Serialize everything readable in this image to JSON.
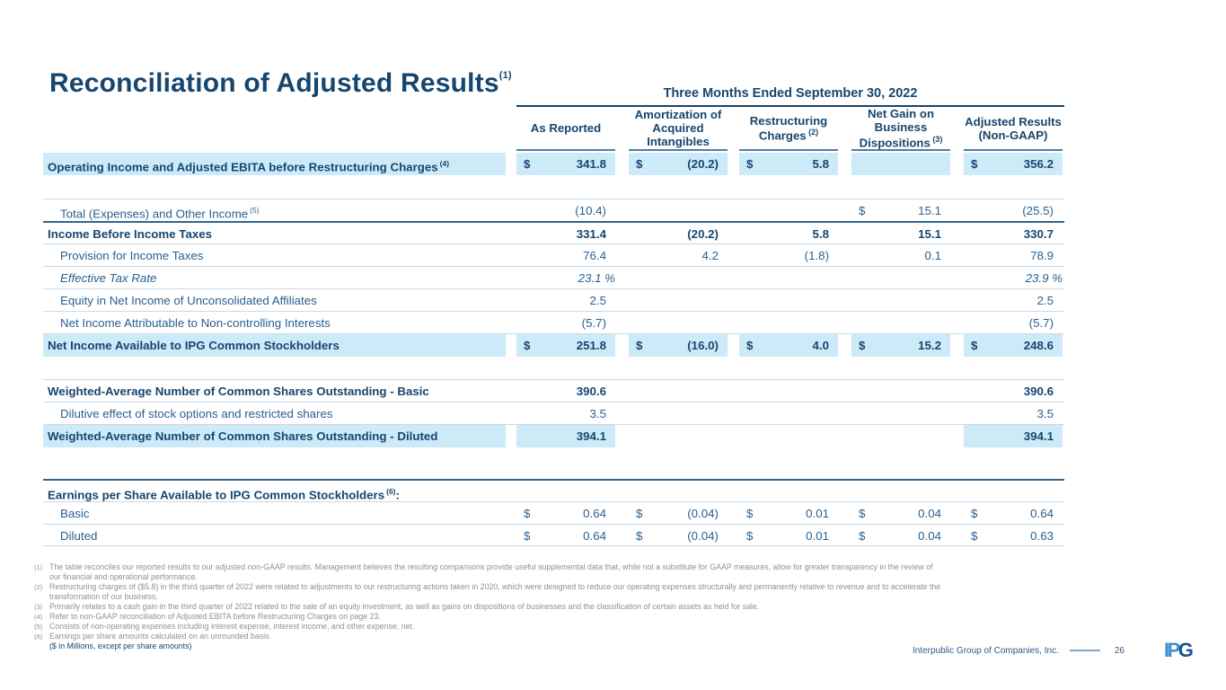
{
  "title": {
    "text": "Reconciliation of Adjusted Results",
    "superscript": "(1)"
  },
  "table": {
    "period_header": "Three Months Ended September 30, 2022",
    "column_headers": [
      {
        "name": "as-reported",
        "text": "As Reported",
        "sup": ""
      },
      {
        "name": "amortization-acquired-intangibles",
        "text": "Amortization of Acquired Intangibles",
        "sup": ""
      },
      {
        "name": "restructuring-charges",
        "text": "Restructuring Charges",
        "sup": "(2)"
      },
      {
        "name": "net-gain-business-dispositions",
        "text": "Net Gain on Business Dispositions",
        "sup": "(3)"
      },
      {
        "name": "adjusted-results-non-gaap",
        "text": "Adjusted Results (Non-GAAP)",
        "sup": ""
      }
    ],
    "rows": [
      {
        "name": "operating-income-adjusted-ebita",
        "label": "Operating Income and Adjusted EBITA before Restructuring Charges",
        "sup": "(4)",
        "bold": true,
        "highlight": true,
        "cells": [
          {
            "d": "$",
            "v": "341.8",
            "hl": true
          },
          {
            "d": "$",
            "v": "(20.2)",
            "hl": true
          },
          {
            "d": "$",
            "v": "5.8",
            "hl": true
          },
          {
            "d": "",
            "v": "",
            "hl": true
          },
          {
            "d": "$",
            "v": "356.2",
            "hl": true
          }
        ]
      },
      {
        "name": "total-expenses-other-income",
        "label": "Total (Expenses) and Other Income",
        "sup": "(5)",
        "indent": true,
        "gap_before": 26,
        "border_top": "light",
        "cells": [
          {
            "v": "(10.4)"
          },
          null,
          null,
          {
            "d": "$",
            "v": "15.1"
          },
          {
            "v": "(25.5)"
          }
        ]
      },
      {
        "name": "income-before-income-taxes",
        "label": "Income Before Income Taxes",
        "bold": true,
        "border_top": "dark",
        "cells": [
          {
            "v": "331.4"
          },
          {
            "v": "(20.2)"
          },
          {
            "v": "5.8"
          },
          {
            "v": "15.1"
          },
          {
            "v": "330.7"
          }
        ]
      },
      {
        "name": "provision-for-income-taxes",
        "label": "Provision for Income Taxes",
        "indent": true,
        "border_top": "light",
        "cells": [
          {
            "v": "76.4"
          },
          {
            "v": "4.2"
          },
          {
            "v": "(1.8)"
          },
          {
            "v": "0.1"
          },
          {
            "v": "78.9"
          }
        ]
      },
      {
        "name": "effective-tax-rate",
        "label": "Effective Tax Rate",
        "indent": true,
        "italic": true,
        "border_top": "light",
        "cells": [
          {
            "v": "23.1 %",
            "pct": true
          },
          null,
          null,
          null,
          {
            "v": "23.9 %",
            "pct": true
          }
        ]
      },
      {
        "name": "equity-net-income-unconsolidated-affiliates",
        "label": "Equity in Net Income of Unconsolidated Affiliates",
        "indent": true,
        "border_top": "light",
        "cells": [
          {
            "v": "2.5"
          },
          null,
          null,
          null,
          {
            "v": "2.5"
          }
        ]
      },
      {
        "name": "net-income-attributable-noncontrolling",
        "label": "Net Income Attributable to Non-controlling Interests",
        "indent": true,
        "border_top": "light",
        "cells": [
          {
            "v": "(5.7)"
          },
          null,
          null,
          null,
          {
            "v": "(5.7)"
          }
        ]
      },
      {
        "name": "net-income-available-ipg-stockholders",
        "label": "Net Income Available to IPG Common Stockholders",
        "bold": true,
        "highlight": true,
        "border_top": "light",
        "cells": [
          {
            "d": "$",
            "v": "251.8",
            "hl": true
          },
          {
            "d": "$",
            "v": "(16.0)",
            "hl": true
          },
          {
            "d": "$",
            "v": "4.0",
            "hl": true
          },
          {
            "d": "$",
            "v": "15.2",
            "hl": true
          },
          {
            "d": "$",
            "v": "248.6",
            "hl": true
          }
        ]
      },
      {
        "name": "weighted-average-shares-basic",
        "label": "Weighted-Average Number of Common Shares Outstanding - Basic",
        "bold": true,
        "gap_before": 26,
        "border_top": "light",
        "cells": [
          {
            "v": "390.6"
          },
          null,
          null,
          null,
          {
            "v": "390.6"
          }
        ]
      },
      {
        "name": "dilutive-effect-stock-options",
        "label": "Dilutive effect of stock options and restricted shares",
        "indent": true,
        "border_top": "light",
        "cells": [
          {
            "v": "3.5"
          },
          null,
          null,
          null,
          {
            "v": "3.5"
          }
        ]
      },
      {
        "name": "weighted-average-shares-diluted",
        "label": "Weighted-Average Number of Common Shares Outstanding - Diluted",
        "bold": true,
        "highlight": true,
        "border_top": "light",
        "cells": [
          {
            "v": "394.1",
            "hl": true
          },
          null,
          null,
          null,
          {
            "v": "394.1",
            "hl": true
          }
        ]
      },
      {
        "name": "eps-header",
        "label": "Earnings per Share Available to IPG Common Stockholders",
        "sup": "(6)",
        "label_suffix": ":",
        "bold": true,
        "gap_before": 36,
        "border_top": "dark",
        "cells": [
          null,
          null,
          null,
          null,
          null
        ]
      },
      {
        "name": "eps-basic",
        "label": "Basic",
        "indent": true,
        "border_top": "light",
        "cells": [
          {
            "d": "$",
            "v": "0.64"
          },
          {
            "d": "$",
            "v": "(0.04)"
          },
          {
            "d": "$",
            "v": "0.01"
          },
          {
            "d": "$",
            "v": "0.04"
          },
          {
            "d": "$",
            "v": "0.64"
          }
        ]
      },
      {
        "name": "eps-diluted",
        "label": "Diluted",
        "indent": true,
        "border_top": "light",
        "border_bottom": "light",
        "cells": [
          {
            "d": "$",
            "v": "0.64"
          },
          {
            "d": "$",
            "v": "(0.04)"
          },
          {
            "d": "$",
            "v": "0.01"
          },
          {
            "d": "$",
            "v": "0.04"
          },
          {
            "d": "$",
            "v": "0.63"
          }
        ]
      }
    ]
  },
  "footnotes": [
    {
      "marker": "(1)",
      "text": "The table reconciles our reported results to our adjusted non-GAAP results. Management believes the resulting comparisons provide useful supplemental data that, while not a substitute for GAAP measures, allow for greater transparency in the review of our financial and operational performance."
    },
    {
      "marker": "(2)",
      "text": "Restructuring charges of ($5.8) in the third quarter of 2022 were related to adjustments to our restructuring actions taken in 2020, which were designed to reduce our operating expenses structurally and permanently relative to revenue and to accelerate the transformation of our business."
    },
    {
      "marker": "(3)",
      "text": "Primarily relates to a cash gain in the third quarter of 2022 related to the sale of an equity investment, as well as gains on dispositions of businesses and the classification of certain assets as held for sale."
    },
    {
      "marker": "(4)",
      "text": "Refer to non-GAAP reconciliation of Adjusted EBITA before Restructuring Charges on page 23."
    },
    {
      "marker": "(5)",
      "text": "Consists of non-operating expenses including interest expense, interest income, and other expense, net."
    },
    {
      "marker": "(6)",
      "text": "Earnings per share amounts calculated on an unrounded basis."
    }
  ],
  "units_note": "($ in Millions, except per share amounts)",
  "footer": {
    "company": "Interpublic Group of Companies, Inc.",
    "page": "26",
    "logo_ip": "IP",
    "logo_g": "G"
  },
  "colors": {
    "navy": "#16466e",
    "text": "#2a6090",
    "highlight": "#cdeaf9",
    "line_light": "#ccd9e3",
    "line_dark": "#35668f",
    "steel": "#4f7ea8",
    "footnote_gray": "#8f9193",
    "logo_light_blue": "#3f8fce",
    "logo_dark_blue": "#1c5296"
  }
}
